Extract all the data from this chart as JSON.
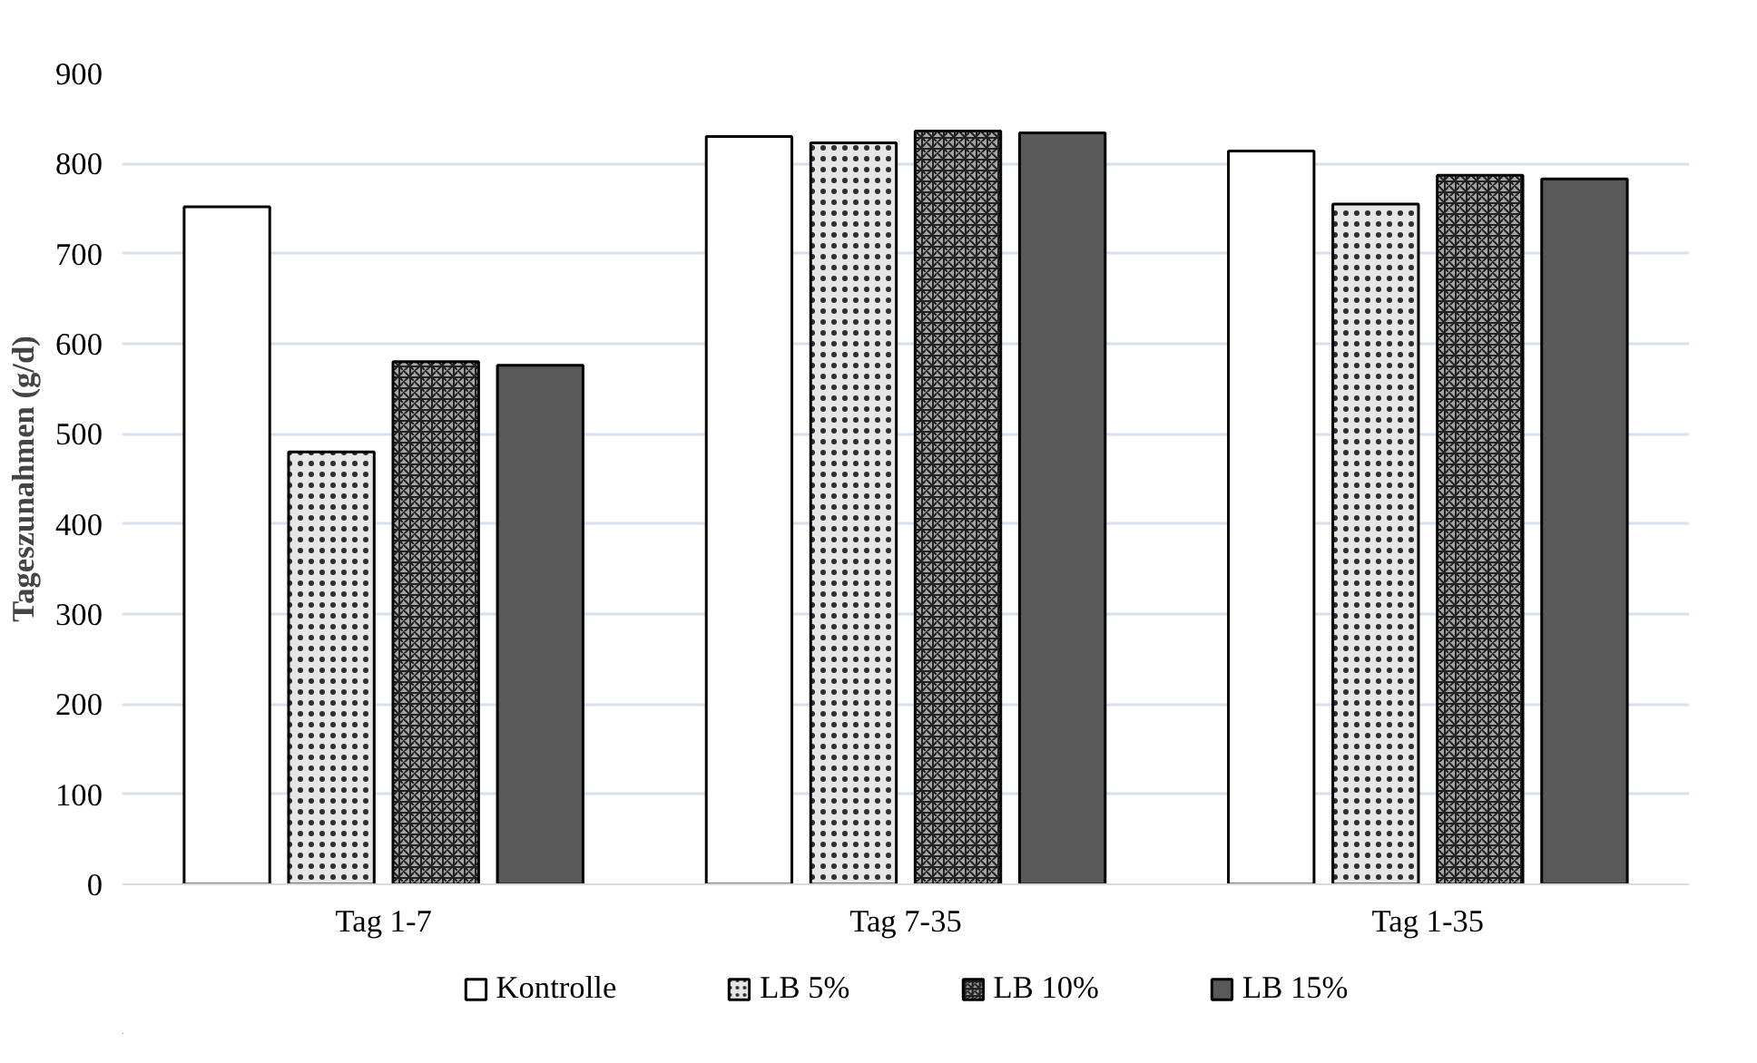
{
  "chart_data": {
    "type": "bar",
    "ylabel": "Tageszunahmen (g/d)",
    "categories": [
      "Tag 1-7",
      "Tag 7-35",
      "Tag 1-35"
    ],
    "series": [
      {
        "name": "Kontrolle",
        "color": "#ffffff",
        "values": [
          752,
          830,
          814
        ]
      },
      {
        "name": "LB 5%",
        "color": "#e6e6e6",
        "values": [
          480,
          823,
          755
        ]
      },
      {
        "name": "LB 10%",
        "color": "#a6a6a6",
        "values": [
          580,
          836,
          787
        ]
      },
      {
        "name": "LB 15%",
        "color": "#595959",
        "values": [
          576,
          834,
          783
        ]
      }
    ],
    "ylim": [
      0,
      900
    ],
    "yticks": [
      0,
      100,
      200,
      300,
      400,
      500,
      600,
      700,
      800,
      900
    ],
    "grid": "y",
    "legend": "bottom"
  }
}
